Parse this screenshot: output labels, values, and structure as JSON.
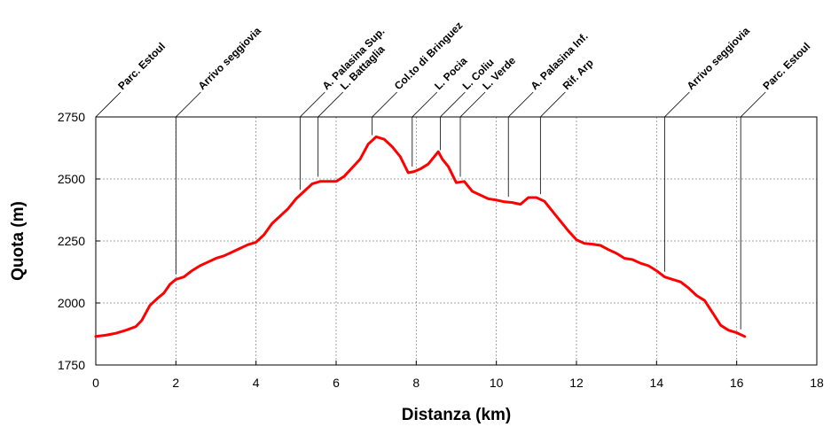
{
  "chart_data": {
    "type": "line",
    "title": "",
    "xlabel": "Distanza (km)",
    "ylabel": "Quota (m)",
    "xlim": [
      0,
      18
    ],
    "ylim": [
      1750,
      2750
    ],
    "x_ticks": [
      "0",
      "2",
      "4",
      "6",
      "8",
      "10",
      "12",
      "14",
      "16",
      "18"
    ],
    "y_ticks": [
      "1750",
      "2000",
      "2250",
      "2500",
      "2750"
    ],
    "grid": true,
    "line_color": "#ff0000",
    "series": [
      {
        "x": [
          0.0,
          0.25,
          0.5,
          0.75,
          1.0,
          1.15,
          1.35,
          1.55,
          1.7,
          1.85,
          2.0,
          2.2,
          2.4,
          2.6,
          2.8,
          3.0,
          3.2,
          3.4,
          3.6,
          3.8,
          4.0,
          4.2,
          4.4,
          4.6,
          4.8,
          5.0,
          5.2,
          5.4,
          5.6,
          5.8,
          6.0,
          6.2,
          6.4,
          6.6,
          6.8,
          7.0,
          7.2,
          7.4,
          7.6,
          7.8,
          7.95,
          8.1,
          8.3,
          8.45,
          8.55,
          8.65,
          8.8,
          9.0,
          9.2,
          9.4,
          9.6,
          9.8,
          10.0,
          10.2,
          10.4,
          10.6,
          10.8,
          11.0,
          11.2,
          11.4,
          11.6,
          11.8,
          12.0,
          12.2,
          12.4,
          12.6,
          12.8,
          13.0,
          13.2,
          13.4,
          13.6,
          13.8,
          14.0,
          14.2,
          14.4,
          14.6,
          14.8,
          15.0,
          15.2,
          15.4,
          15.6,
          15.8,
          16.0,
          16.2
        ],
        "y": [
          1865,
          1870,
          1878,
          1890,
          1905,
          1930,
          1990,
          2020,
          2040,
          2075,
          2095,
          2105,
          2130,
          2150,
          2165,
          2180,
          2190,
          2205,
          2220,
          2235,
          2245,
          2275,
          2320,
          2350,
          2380,
          2420,
          2450,
          2480,
          2490,
          2490,
          2490,
          2510,
          2545,
          2580,
          2640,
          2670,
          2660,
          2630,
          2590,
          2525,
          2530,
          2540,
          2560,
          2590,
          2610,
          2580,
          2550,
          2485,
          2490,
          2450,
          2435,
          2420,
          2415,
          2408,
          2405,
          2398,
          2425,
          2425,
          2410,
          2370,
          2330,
          2290,
          2255,
          2240,
          2237,
          2232,
          2215,
          2200,
          2180,
          2175,
          2160,
          2150,
          2130,
          2105,
          2095,
          2085,
          2060,
          2030,
          2010,
          1960,
          1910,
          1890,
          1880,
          1865
        ]
      }
    ],
    "waypoints": [
      {
        "km": 0.0,
        "label": "Parc. Estoul"
      },
      {
        "km": 2.0,
        "label": "Arrivo seggiovia"
      },
      {
        "km": 5.1,
        "label": "A. Palasina Sup."
      },
      {
        "km": 5.55,
        "label": "L. Battaglia"
      },
      {
        "km": 6.9,
        "label": "Col.to di Bringuez"
      },
      {
        "km": 7.9,
        "label": "L. Pocia"
      },
      {
        "km": 8.6,
        "label": "L. Coliu"
      },
      {
        "km": 9.1,
        "label": "L. Verde"
      },
      {
        "km": 10.3,
        "label": "A. Palasina Inf."
      },
      {
        "km": 11.1,
        "label": "Rif. Arp"
      },
      {
        "km": 14.2,
        "label": "Arrivo seggiovia"
      },
      {
        "km": 16.1,
        "label": "Parc. Estoul"
      }
    ]
  }
}
